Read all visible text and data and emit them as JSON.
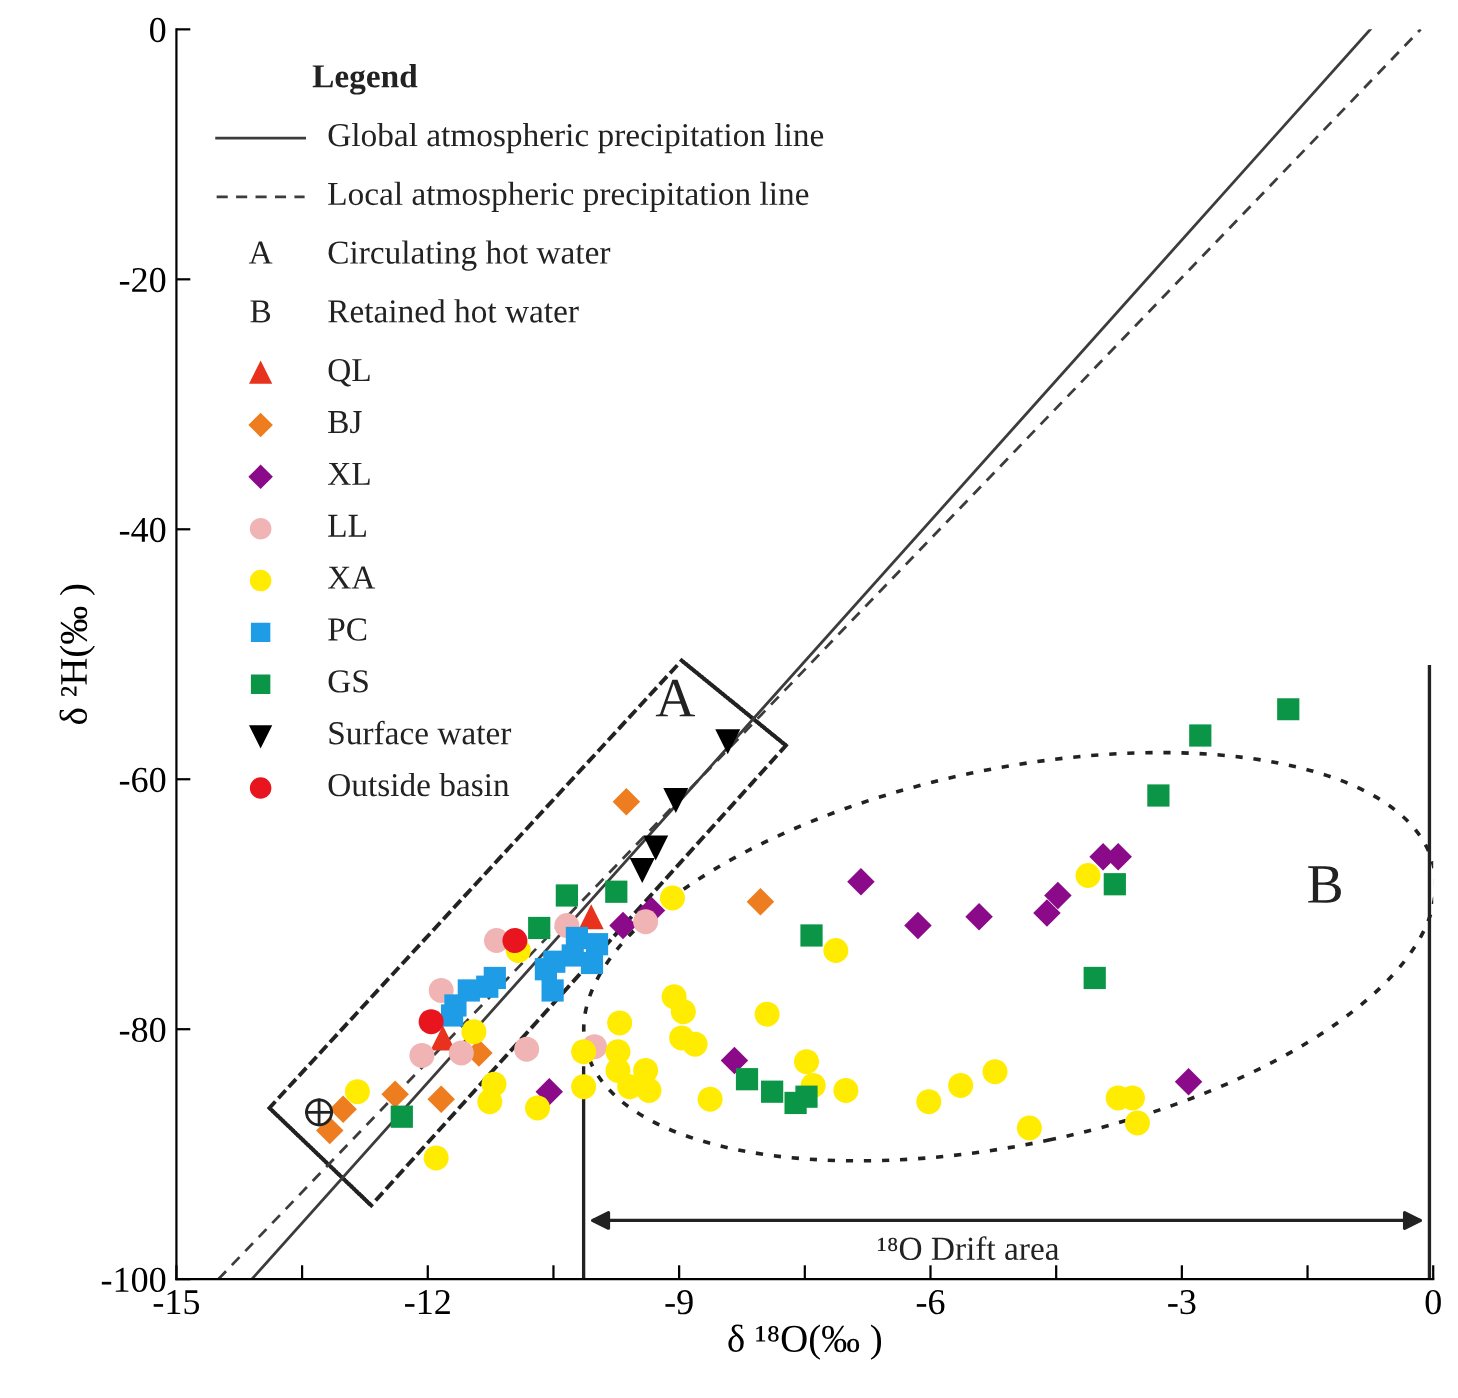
{
  "chart_data": {
    "type": "scatter",
    "xlabel": "δ ¹⁸O(‰ )",
    "ylabel": "δ ²H(‰ )",
    "legend_title": "Legend",
    "legend": "top left",
    "grid": false,
    "xlim": [
      -15,
      0
    ],
    "ylim": [
      -100,
      0
    ],
    "xticks": [
      -15,
      {
        "value": -13.5,
        "label": null
      },
      -12,
      {
        "value": -10.5,
        "label": null
      },
      -9,
      {
        "value": -7.5,
        "label": null
      },
      -6,
      {
        "value": -4.5,
        "label": null
      },
      -3,
      {
        "value": -1.5,
        "label": null
      },
      0
    ],
    "yticks": [
      -100,
      -80,
      -60,
      -40,
      -20,
      0
    ],
    "series": [
      {
        "name": "Global atmospheric precipitation line",
        "type": "line",
        "line_style": "solid",
        "marker": "none",
        "color": "#3c3c3c",
        "x": [
          -14.1,
          -0.75
        ],
        "values": [
          -100,
          0
        ]
      },
      {
        "name": "Local atmospheric precipitation line",
        "type": "line",
        "line_style": "dashed",
        "marker": "none",
        "color": "#3c3c3c",
        "x": [
          -14.5,
          -0.15
        ],
        "values": [
          -100,
          0
        ]
      },
      {
        "name": "QL",
        "marker": "triangle",
        "color": "#e8321e",
        "x": [
          -10.05,
          -11.82
        ],
        "values": [
          -71.0,
          -80.7
        ]
      },
      {
        "name": "BJ",
        "marker": "diamond",
        "color": "#ee7d1f",
        "x": [
          -9.63,
          -8.03,
          -11.39,
          -12.39,
          -11.84,
          -13.01,
          -13.17
        ],
        "values": [
          -61.8,
          -69.8,
          -81.9,
          -85.2,
          -85.6,
          -86.4,
          -88.1
        ]
      },
      {
        "name": "XL",
        "marker": "diamond",
        "color": "#8b0a8a",
        "x": [
          -9.67,
          -9.33,
          -8.34,
          -10.55,
          -6.83,
          -6.15,
          -5.42,
          -4.61,
          -4.48,
          -3.94,
          -3.76,
          -2.92
        ],
        "values": [
          -71.7,
          -70.5,
          -82.5,
          -85.0,
          -68.2,
          -71.7,
          -71.0,
          -70.7,
          -69.3,
          -66.2,
          -66.2,
          -84.2
        ]
      },
      {
        "name": "LL",
        "marker": "circle",
        "color": "#f0b4b4",
        "x": [
          -11.18,
          -10.34,
          -9.4,
          -11.84,
          -12.07,
          -11.6,
          -10.82,
          -10.01
        ],
        "values": [
          -72.9,
          -71.7,
          -71.4,
          -76.9,
          -82.1,
          -81.9,
          -81.6,
          -81.4
        ]
      },
      {
        "name": "XA",
        "marker": "circle",
        "color": "#ffec00",
        "x": [
          -9.08,
          -10.92,
          -11.45,
          -9.06,
          -8.95,
          -7.95,
          -9.71,
          -8.97,
          -8.81,
          -10.14,
          -9.73,
          -9.73,
          -9.4,
          -9.59,
          -9.36,
          -10.14,
          -11.21,
          -11.26,
          -10.69,
          -12.84,
          -11.9,
          -8.63,
          -7.13,
          -4.12,
          -7.48,
          -7.4,
          -7.01,
          -6.02,
          -5.64,
          -5.23,
          -4.82,
          -3.76,
          -3.59,
          -3.53
        ],
        "values": [
          -69.5,
          -73.7,
          -80.2,
          -77.4,
          -78.6,
          -78.8,
          -79.5,
          -80.7,
          -81.2,
          -81.8,
          -81.8,
          -83.3,
          -83.3,
          -84.6,
          -84.9,
          -84.6,
          -84.4,
          -85.8,
          -86.3,
          -85.0,
          -90.3,
          -85.6,
          -73.7,
          -67.7,
          -82.6,
          -84.5,
          -84.9,
          -85.8,
          -84.5,
          -83.4,
          -87.9,
          -85.5,
          -85.5,
          -87.5
        ]
      },
      {
        "name": "PC",
        "marker": "square",
        "color": "#1e9ce6",
        "x": [
          -10.22,
          -9.98,
          -10.27,
          -10.04,
          -10.49,
          -10.59,
          -10.51,
          -11.2,
          -11.29,
          -11.51,
          -11.67,
          -11.71
        ],
        "values": [
          -72.7,
          -73.2,
          -74.1,
          -74.7,
          -74.6,
          -75.2,
          -76.9,
          -75.9,
          -76.6,
          -76.9,
          -78.1,
          -78.9
        ]
      },
      {
        "name": "GS",
        "marker": "square",
        "color": "#0a9646",
        "x": [
          -10.34,
          -9.75,
          -10.67,
          -12.31,
          -8.19,
          -7.89,
          -1.73,
          -2.78,
          -3.28,
          -3.8,
          -7.42,
          -4.04,
          -7.61,
          -7.48
        ],
        "values": [
          -69.3,
          -69.0,
          -71.9,
          -87.0,
          -84.0,
          -85.0,
          -54.4,
          -56.5,
          -61.3,
          -68.4,
          -72.5,
          -75.9,
          -85.9,
          -85.4
        ]
      },
      {
        "name": "Surface water",
        "marker": "triangle_down",
        "color": "#000000",
        "x": [
          -8.42,
          -9.04,
          -9.28,
          -9.44
        ],
        "values": [
          -57.0,
          -61.7,
          -65.5,
          -67.3
        ]
      },
      {
        "name": "Outside basin",
        "marker": "circle",
        "color": "#e8141e",
        "x": [
          -10.96,
          -11.96
        ],
        "values": [
          -72.9,
          -79.4
        ]
      }
    ],
    "annotations": [
      "A",
      "B",
      "Circulating hot water",
      "Retained hot water",
      "¹⁸O Drift area"
    ]
  }
}
